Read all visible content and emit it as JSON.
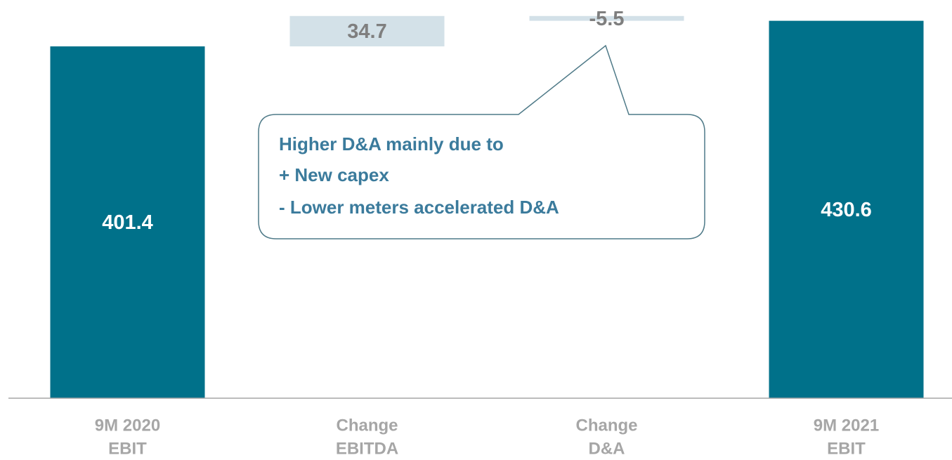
{
  "chart_data": {
    "type": "waterfall",
    "categories": [
      [
        "9M 2020",
        "EBIT"
      ],
      [
        "Change",
        "EBITDA"
      ],
      [
        "Change",
        "D&A"
      ],
      [
        "9M 2021",
        "EBIT"
      ]
    ],
    "values": [
      401.4,
      34.7,
      -5.5,
      430.6
    ],
    "totals": [
      true,
      false,
      false,
      true
    ],
    "total_color": "#00718a",
    "change_color": "#d3e1e8",
    "total_label_color": "#ffffff",
    "change_label_color": "#7f7f7f",
    "ylim": [
      0,
      450
    ],
    "annotation": [
      "Higher D&A mainly due to",
      "+ New capex",
      "- Lower meters accelerated D&A"
    ]
  }
}
